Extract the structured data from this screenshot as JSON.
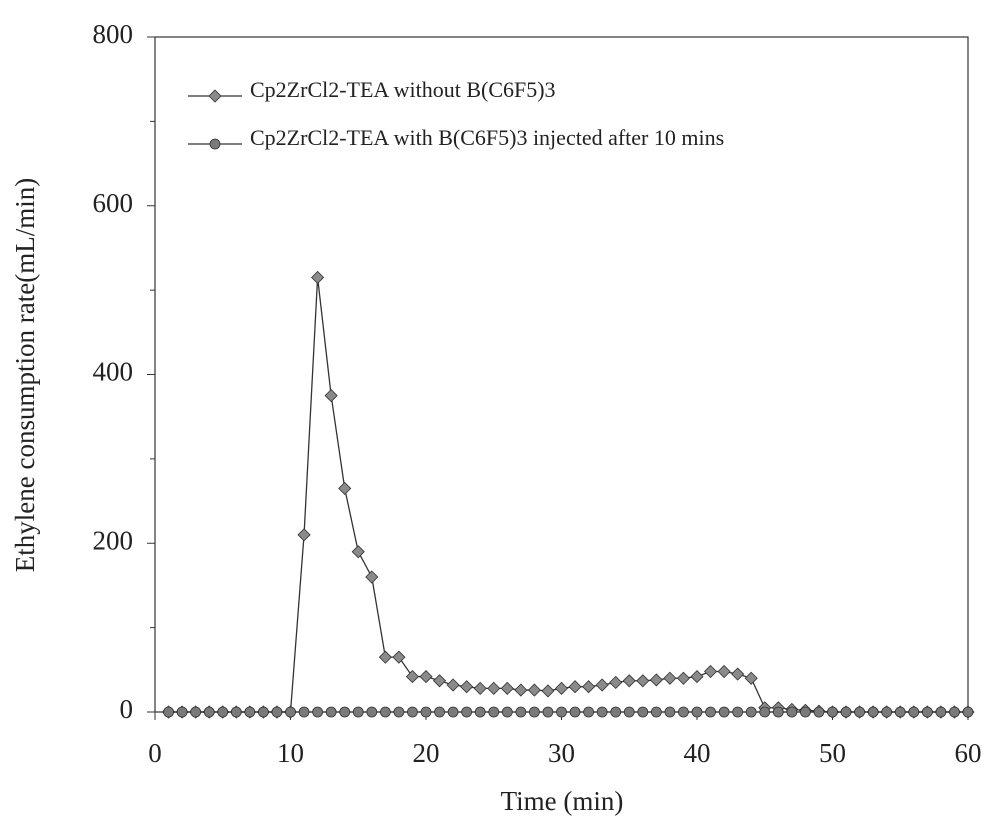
{
  "chart_data": {
    "type": "line",
    "xlabel": "Time (min)",
    "ylabel": "Ethylene consumption rate(mL/min)",
    "x": [
      1,
      2,
      3,
      4,
      5,
      6,
      7,
      8,
      9,
      10,
      11,
      12,
      13,
      14,
      15,
      16,
      17,
      18,
      19,
      20,
      21,
      22,
      23,
      24,
      25,
      26,
      27,
      28,
      29,
      30,
      31,
      32,
      33,
      34,
      35,
      36,
      37,
      38,
      39,
      40,
      41,
      42,
      43,
      44,
      45,
      46,
      47,
      48,
      49,
      50,
      51,
      52,
      53,
      54,
      55,
      56,
      57,
      58,
      59,
      60
    ],
    "series": [
      {
        "name": "Cp2ZrCl2-TEA without B(C6F5)3",
        "color": "#8a8a8a",
        "marker": "diamond",
        "values": [
          0,
          0,
          0,
          0,
          0,
          0,
          0,
          0,
          0,
          0,
          210,
          515,
          375,
          265,
          190,
          160,
          65,
          65,
          42,
          42,
          37,
          32,
          30,
          28,
          28,
          28,
          26,
          26,
          25,
          28,
          30,
          30,
          32,
          35,
          37,
          37,
          38,
          40,
          40,
          42,
          48,
          48,
          45,
          40,
          5,
          5,
          3,
          2,
          1,
          0,
          0,
          0,
          0,
          0,
          0,
          0,
          0,
          0,
          0,
          0
        ]
      },
      {
        "name": "Cp2ZrCl2-TEA with B(C6F5)3 injected after 10 mins",
        "color": "#7a7a7a",
        "marker": "circle",
        "values": [
          0,
          0,
          0,
          0,
          0,
          0,
          0,
          0,
          0,
          0,
          0,
          0,
          0,
          0,
          0,
          0,
          0,
          0,
          0,
          0,
          0,
          0,
          0,
          0,
          0,
          0,
          0,
          0,
          0,
          0,
          0,
          0,
          0,
          0,
          0,
          0,
          0,
          0,
          0,
          0,
          0,
          0,
          0,
          0,
          0,
          0,
          0,
          0,
          0,
          0,
          0,
          0,
          0,
          0,
          0,
          0,
          0,
          0,
          0,
          0
        ]
      }
    ],
    "xlim": [
      0,
      60
    ],
    "xticks": [
      0,
      10,
      20,
      30,
      40,
      50,
      60
    ],
    "ylim": [
      0,
      800
    ],
    "yticks": [
      0,
      200,
      400,
      600,
      800
    ],
    "legend": "upper left",
    "grid": false
  }
}
